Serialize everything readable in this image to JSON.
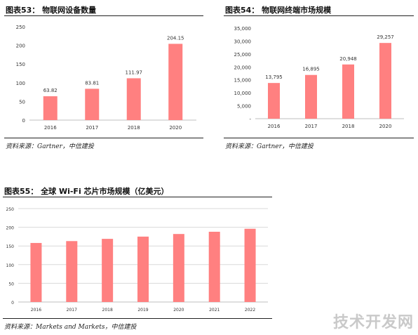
{
  "panels": [
    {
      "title": "图表53：  物联网设备数量",
      "source": "资料来源：Gartner，中信建投"
    },
    {
      "title": "图表54：  物联网终端市场规模",
      "source": "资料来源：Gartner，中信建投"
    },
    {
      "title": "图表55：  全球 Wi-Fi 芯片市场规模（亿美元）",
      "source": "资料来源：Markets and Markets，中信建投"
    }
  ],
  "watermark": "技术开发网",
  "colors": {
    "bar": "#ff8080",
    "grid": "#d9d9d9",
    "axis": "#bfbfbf"
  },
  "chart_data": [
    {
      "type": "bar",
      "title": "",
      "xlabel": "",
      "ylabel": "",
      "categories": [
        "2016",
        "2017",
        "2018",
        "2020"
      ],
      "values": [
        63.82,
        83.81,
        111.97,
        204.15
      ],
      "value_labels": [
        "63.82",
        "83.81",
        "111.97",
        "204.15"
      ],
      "ylim": [
        0,
        250
      ],
      "yticks": [
        0,
        50,
        100,
        150,
        200,
        250
      ],
      "ytick_labels": [
        "0",
        "50",
        "100",
        "150",
        "200",
        "250"
      ],
      "grid": false
    },
    {
      "type": "bar",
      "title": "",
      "xlabel": "",
      "ylabel": "",
      "categories": [
        "2016",
        "2017",
        "2018",
        "2020"
      ],
      "values": [
        13795,
        16895,
        20948,
        29257
      ],
      "value_labels": [
        "13,795",
        "16,895",
        "20,948",
        "29,257"
      ],
      "ylim": [
        0,
        35000
      ],
      "yticks": [
        0,
        5000,
        10000,
        15000,
        20000,
        25000,
        30000,
        35000
      ],
      "ytick_labels": [
        "-",
        "5,000",
        "10,000",
        "15,000",
        "20,000",
        "25,000",
        "30,000",
        "35,000"
      ],
      "grid": false
    },
    {
      "type": "bar",
      "title": "",
      "xlabel": "",
      "ylabel": "",
      "categories": [
        "2016",
        "2017",
        "2018",
        "2019",
        "2020",
        "2021",
        "2022"
      ],
      "values": [
        158,
        163,
        169,
        175,
        182,
        188,
        196
      ],
      "value_labels": [],
      "ylim": [
        0,
        250
      ],
      "yticks": [
        0,
        50,
        100,
        150,
        200,
        250
      ],
      "ytick_labels": [
        "0",
        "50",
        "100",
        "150",
        "200",
        "250"
      ],
      "grid": true
    }
  ]
}
